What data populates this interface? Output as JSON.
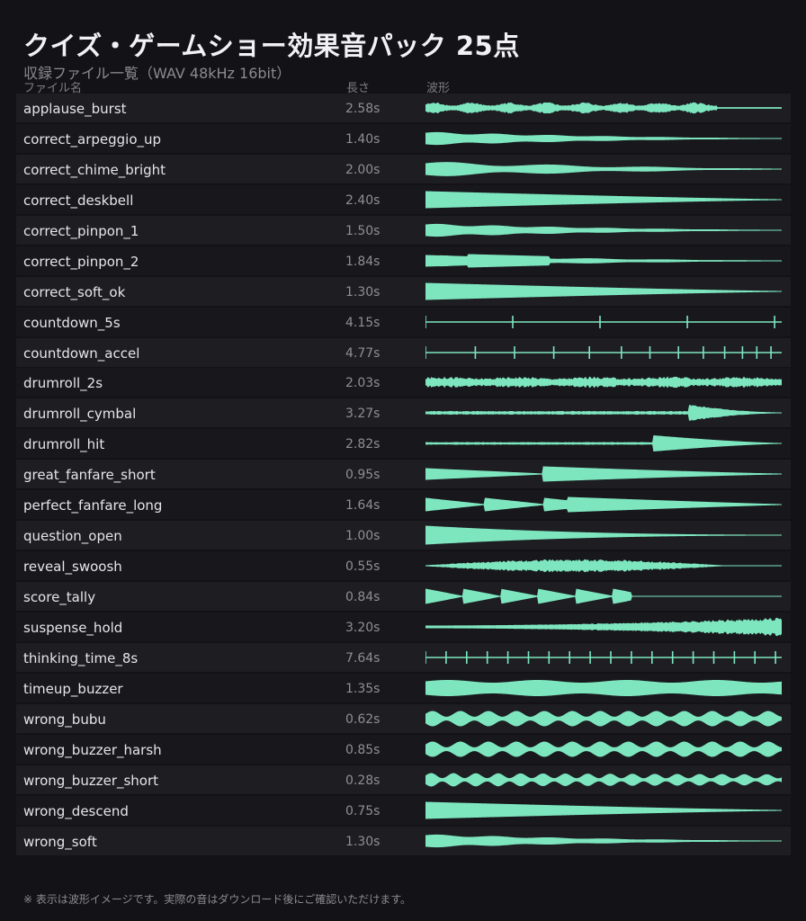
{
  "header": {
    "title": "クイズ・ゲームショー効果音パック 25点",
    "subtitle": "収録ファイル一覧（WAV 48kHz 16bit）"
  },
  "columns": {
    "name": "ファイル名",
    "length": "長さ",
    "wave": "波形"
  },
  "accent_color": "#7ee6bf",
  "files": [
    {
      "name": "applause_burst",
      "length": "2.58s",
      "pattern": "noise_bursts"
    },
    {
      "name": "correct_arpeggio_up",
      "length": "1.40s",
      "pattern": "decay_soft"
    },
    {
      "name": "correct_chime_bright",
      "length": "2.00s",
      "pattern": "decay_ripple"
    },
    {
      "name": "correct_deskbell",
      "length": "2.40s",
      "pattern": "decay_long"
    },
    {
      "name": "correct_pinpon_1",
      "length": "1.50s",
      "pattern": "decay_soft"
    },
    {
      "name": "correct_pinpon_2",
      "length": "1.84s",
      "pattern": "two_tone"
    },
    {
      "name": "correct_soft_ok",
      "length": "1.30s",
      "pattern": "decay_long"
    },
    {
      "name": "countdown_5s",
      "length": "4.15s",
      "pattern": "ticks5"
    },
    {
      "name": "countdown_accel",
      "length": "4.77s",
      "pattern": "ticks_accel"
    },
    {
      "name": "drumroll_2s",
      "length": "2.03s",
      "pattern": "noise_even"
    },
    {
      "name": "drumroll_cymbal",
      "length": "3.27s",
      "pattern": "late_cymbal"
    },
    {
      "name": "drumroll_hit",
      "length": "2.82s",
      "pattern": "late_hit"
    },
    {
      "name": "great_fanfare_short",
      "length": "0.95s",
      "pattern": "fanfare_short"
    },
    {
      "name": "perfect_fanfare_long",
      "length": "1.64s",
      "pattern": "fanfare_long"
    },
    {
      "name": "question_open",
      "length": "1.00s",
      "pattern": "wedge"
    },
    {
      "name": "reveal_swoosh",
      "length": "0.55s",
      "pattern": "swoosh"
    },
    {
      "name": "score_tally",
      "length": "0.84s",
      "pattern": "tally"
    },
    {
      "name": "suspense_hold",
      "length": "3.20s",
      "pattern": "crescendo"
    },
    {
      "name": "thinking_time_8s",
      "length": "7.64s",
      "pattern": "ticks_many"
    },
    {
      "name": "timeup_buzzer",
      "length": "1.35s",
      "pattern": "buzz_full"
    },
    {
      "name": "wrong_bubu",
      "length": "0.62s",
      "pattern": "buzz_wave"
    },
    {
      "name": "wrong_buzzer_harsh",
      "length": "0.85s",
      "pattern": "buzz_wave"
    },
    {
      "name": "wrong_buzzer_short",
      "length": "0.28s",
      "pattern": "buzz_thin"
    },
    {
      "name": "wrong_descend",
      "length": "0.75s",
      "pattern": "decay_long"
    },
    {
      "name": "wrong_soft",
      "length": "1.30s",
      "pattern": "decay_soft"
    }
  ],
  "footer": "※ 表示は波形イメージです。実際の音はダウンロード後にご確認いただけます。"
}
